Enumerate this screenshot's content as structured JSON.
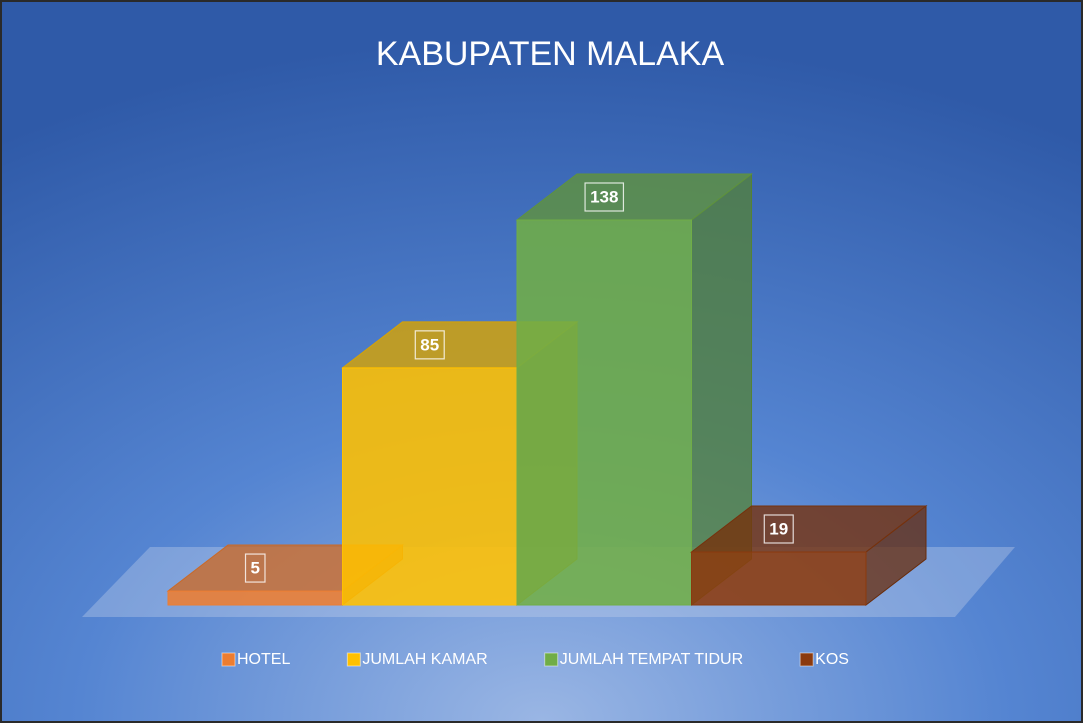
{
  "chart_data": {
    "type": "bar3d",
    "title": "KABUPATEN MALAKA",
    "series": [
      {
        "name": "HOTEL",
        "color": "#ed7d31",
        "values": [
          5
        ]
      },
      {
        "name": "JUMLAH KAMAR",
        "color": "#ffc000",
        "values": [
          85
        ]
      },
      {
        "name": "JUMLAH TEMPAT TIDUR",
        "color": "#70ad47",
        "values": [
          138
        ]
      },
      {
        "name": "KOS",
        "color": "#8b3a0e",
        "values": [
          19
        ]
      }
    ]
  }
}
